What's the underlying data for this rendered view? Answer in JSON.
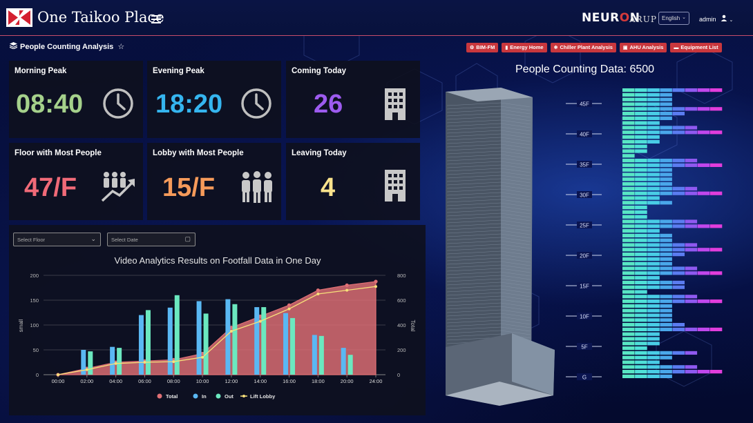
{
  "header": {
    "app_title": "One Taikoo Place",
    "brand": "NEUR",
    "brand_o": "O",
    "brand_n": "N",
    "brand_sub": "ARUP",
    "language": "English",
    "user": "admin"
  },
  "page": {
    "title": "People Counting Analysis",
    "star": "☆"
  },
  "nav": [
    {
      "label": "BIM-FM",
      "icon": "settings-icon"
    },
    {
      "label": "Energy Home",
      "icon": "bar-chart-icon"
    },
    {
      "label": "Chiller Plant Analysis",
      "icon": "snowflake-icon"
    },
    {
      "label": "AHU Analysis",
      "icon": "fan-icon"
    },
    {
      "label": "Equipment List",
      "icon": "folder-icon"
    }
  ],
  "cards": {
    "morning_peak": {
      "label": "Morning Peak",
      "value": "08:40",
      "color": "#a5d18b",
      "icon": "clock-icon"
    },
    "evening_peak": {
      "label": "Evening Peak",
      "value": "18:20",
      "color": "#35b5ef",
      "icon": "clock-icon"
    },
    "coming_today": {
      "label": "Coming Today",
      "value": "26",
      "color": "#9d5bef",
      "icon": "building-icon"
    },
    "floor_most": {
      "label": "Floor with Most People",
      "value": "47/F",
      "color": "#f06a78",
      "icon": "crowd-growth-icon"
    },
    "lobby_most": {
      "label": "Lobby with Most People",
      "value": "15/F",
      "color": "#f59a5a",
      "icon": "crowd-icon"
    },
    "leaving_today": {
      "label": "Leaving Today",
      "value": "4",
      "color": "#f9e28c",
      "icon": "building-icon"
    }
  },
  "filters": {
    "floor_placeholder": "Select Floor",
    "date_placeholder": "Select Date"
  },
  "building": {
    "title": "People Counting Data: 6500",
    "floor_labels": [
      "45F",
      "40F",
      "35F",
      "30F",
      "25F",
      "20F",
      "15F",
      "10F",
      "5F",
      "G"
    ]
  },
  "chart_data": {
    "type": "bar",
    "title": "Video Analytics Results on Footfall Data in One Day",
    "ylabel": "small",
    "y2label": "Total",
    "ylim": [
      0,
      200
    ],
    "y2lim": [
      0,
      800
    ],
    "yticks": [
      "0",
      "50",
      "100",
      "150",
      "200"
    ],
    "y2ticks": [
      "0",
      "200",
      "400",
      "600",
      "800"
    ],
    "categories": [
      "00:00",
      "02:00",
      "04:00",
      "06:00",
      "08:00",
      "10:00",
      "12:00",
      "14:00",
      "16:00",
      "18:00",
      "20:00",
      "24:00"
    ],
    "legend": [
      "Total",
      "In",
      "Out",
      "Lift Lobby"
    ],
    "colors": {
      "Total": "#e07075",
      "In": "#5ab8f3",
      "Out": "#6be8bf",
      "Lift Lobby": "#f7e07a"
    },
    "series": [
      {
        "name": "In",
        "axis": "left",
        "values": [
          null,
          50,
          56,
          120,
          135,
          148,
          152,
          136,
          124,
          80,
          54,
          null
        ]
      },
      {
        "name": "Out",
        "axis": "left",
        "values": [
          null,
          47,
          54,
          130,
          160,
          123,
          142,
          136,
          114,
          78,
          40,
          null
        ]
      },
      {
        "name": "Total",
        "axis": "right",
        "values": [
          0,
          50,
          100,
          110,
          120,
          170,
          380,
          470,
          560,
          680,
          720,
          750
        ]
      },
      {
        "name": "Lift Lobby",
        "axis": "right",
        "values": [
          0,
          40,
          90,
          100,
          105,
          140,
          350,
          430,
          530,
          650,
          680,
          710
        ]
      }
    ]
  }
}
